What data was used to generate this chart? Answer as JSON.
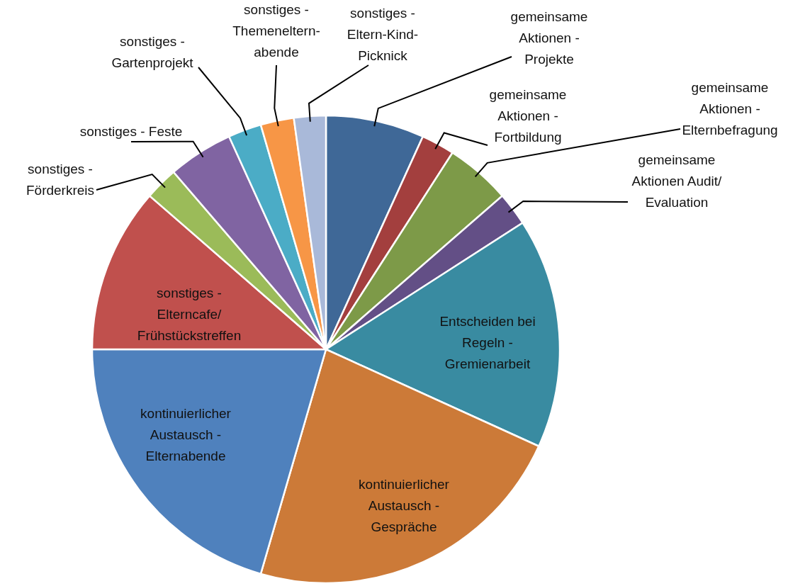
{
  "chart_data": {
    "type": "pie",
    "categories": [
      "gemeinsame Aktionen - Projekte",
      "gemeinsame Aktionen - Fortbildung",
      "gemeinsame Aktionen - Elternbefragung",
      "gemeinsame Aktionen Audit/Evaluation",
      "Entscheiden bei Regeln - Gremienarbeit",
      "kontinuierlicher Austausch - Gespräche",
      "kontinuierlicher Austausch - Elternabende",
      "sonstiges - Elterncafe/Frühstückstreffen",
      "sonstiges - Förderkreis",
      "sonstiges - Feste",
      "sonstiges - Gartenprojekt",
      "sonstiges - Themeneltern-abende",
      "sonstiges - Eltern-Kind-Picknick"
    ],
    "values": [
      6.8,
      2.3,
      4.5,
      2.3,
      15.9,
      22.7,
      20.5,
      11.4,
      2.3,
      4.5,
      2.3,
      2.3,
      2.2
    ],
    "colors": [
      "#3f6897",
      "#a33f3e",
      "#7d9a48",
      "#634f86",
      "#398ba1",
      "#cc7a38",
      "#4f81bd",
      "#c0504d",
      "#9bbb59",
      "#8064a2",
      "#4bacc6",
      "#f79646",
      "#a9b9d9"
    ]
  }
}
